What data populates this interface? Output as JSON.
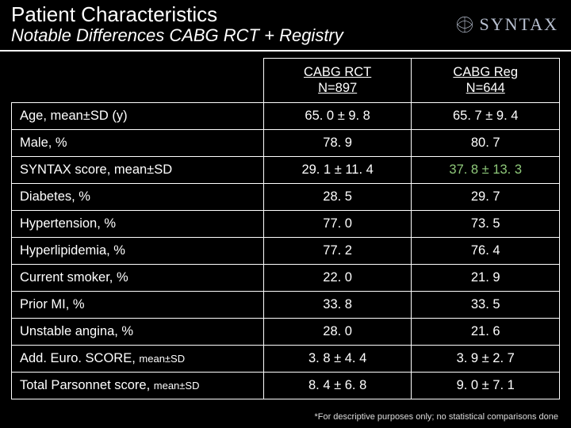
{
  "header": {
    "title": "Patient Characteristics",
    "subtitle": "Notable Differences CABG  RCT + Registry",
    "logo_text": "SYNTAX"
  },
  "table": {
    "columns": [
      {
        "label_line1": "CABG RCT",
        "label_line2": "N=897"
      },
      {
        "label_line1": "CABG Reg",
        "label_line2": "N=644"
      }
    ],
    "rows": [
      {
        "label": "Age, mean±SD (y)",
        "suffix": "",
        "v1": "65. 0 ± 9. 8",
        "v2": "65. 7 ± 9. 4",
        "highlight_v2": false
      },
      {
        "label": "Male, %",
        "suffix": "",
        "v1": "78. 9",
        "v2": "80. 7",
        "highlight_v2": false
      },
      {
        "label": "SYNTAX score, mean±SD",
        "suffix": "",
        "v1": "29. 1 ± 11. 4",
        "v2": "37. 8 ± 13. 3",
        "highlight_v2": true
      },
      {
        "label": "Diabetes, %",
        "suffix": "",
        "v1": "28. 5",
        "v2": "29. 7",
        "highlight_v2": false
      },
      {
        "label": "Hypertension, %",
        "suffix": "",
        "v1": "77. 0",
        "v2": "73. 5",
        "highlight_v2": false
      },
      {
        "label": "Hyperlipidemia, %",
        "suffix": "",
        "v1": "77. 2",
        "v2": "76. 4",
        "highlight_v2": false
      },
      {
        "label": "Current smoker, %",
        "suffix": "",
        "v1": "22. 0",
        "v2": "21. 9",
        "highlight_v2": false
      },
      {
        "label": "Prior MI, %",
        "suffix": "",
        "v1": "33. 8",
        "v2": "33. 5",
        "highlight_v2": false
      },
      {
        "label": "Unstable angina, %",
        "suffix": "",
        "v1": "28. 0",
        "v2": "21. 6",
        "highlight_v2": false
      },
      {
        "label": "Add. Euro. SCORE, ",
        "suffix": "mean±SD",
        "v1": "3. 8 ± 4. 4",
        "v2": "3. 9 ± 2. 7",
        "highlight_v2": false
      },
      {
        "label": "Total Parsonnet score, ",
        "suffix": "mean±SD",
        "v1": "8. 4 ± 6. 8",
        "v2": "9. 0 ± 7. 1",
        "highlight_v2": false
      }
    ]
  },
  "footnote": "*For descriptive purposes only; no statistical comparisons done",
  "style": {
    "background": "#000000",
    "text_color": "#ffffff",
    "border_color": "#ffffff",
    "highlight_color": "#8fc97a",
    "logo_color": "#b8c0d0",
    "title_fontsize": 26,
    "subtitle_fontsize": 22,
    "cell_fontsize": 16.5,
    "footnote_fontsize": 11,
    "slide_width": 720,
    "slide_height": 540
  }
}
